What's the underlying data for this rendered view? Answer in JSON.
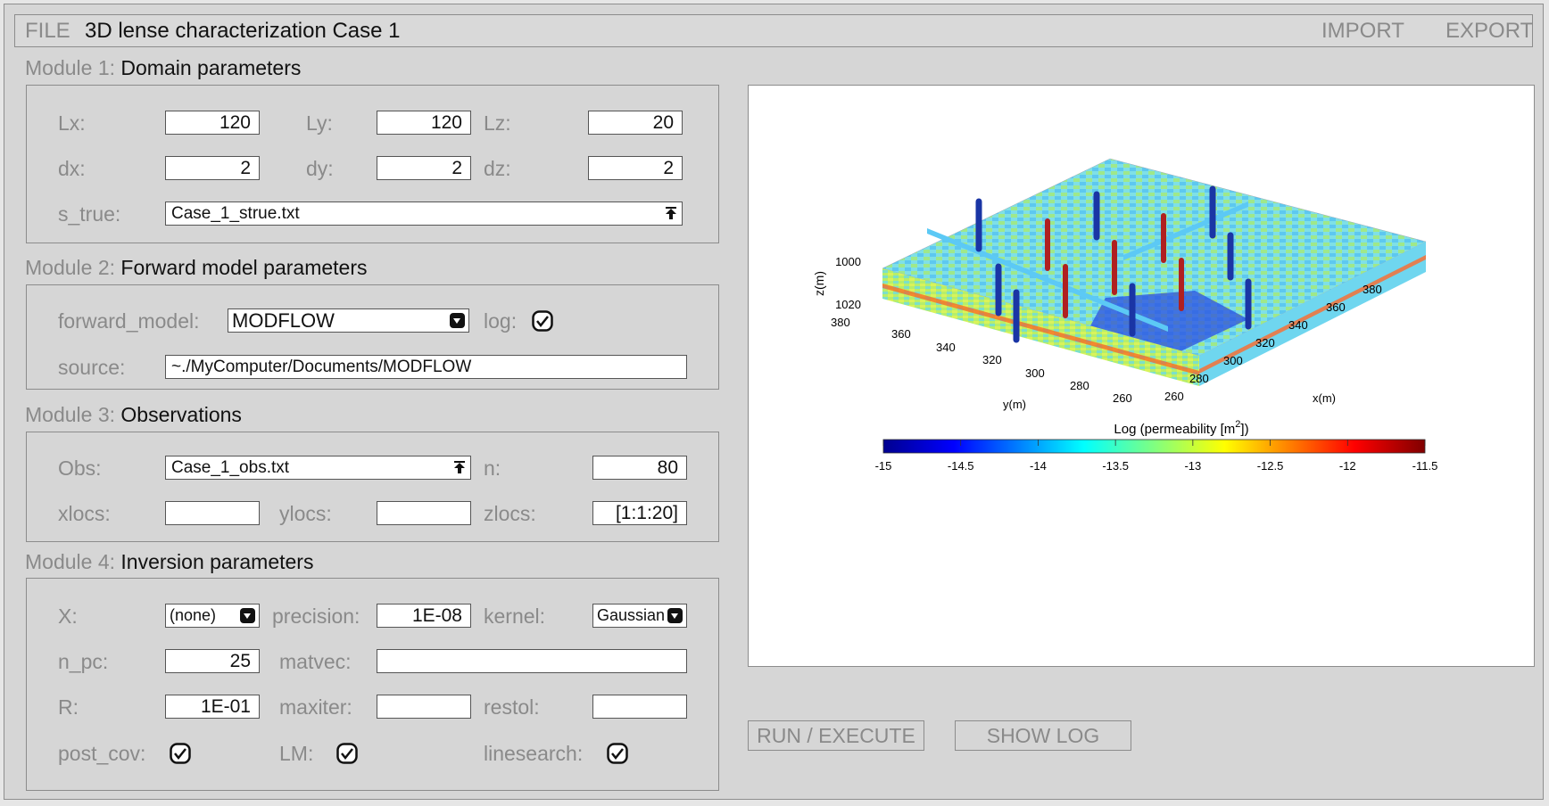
{
  "titlebar": {
    "file_label": "FILE",
    "title": "3D lense characterization Case 1",
    "import_label": "IMPORT",
    "export_label": "EXPORT"
  },
  "module1": {
    "prefix": "Module 1:",
    "name": "Domain parameters",
    "lx_label": "Lx:",
    "lx": "120",
    "ly_label": "Ly:",
    "ly": "120",
    "lz_label": "Lz:",
    "lz": "20",
    "dx_label": "dx:",
    "dx": "2",
    "dy_label": "dy:",
    "dy": "2",
    "dz_label": "dz:",
    "dz": "2",
    "strue_label": "s_true:",
    "strue": "Case_1_strue.txt"
  },
  "module2": {
    "prefix": "Module 2:",
    "name": "Forward model parameters",
    "fm_label": "forward_model:",
    "fm": "MODFLOW",
    "log_label": "log:",
    "source_label": "source:",
    "source": "~./MyComputer/Documents/MODFLOW"
  },
  "module3": {
    "prefix": "Module 3:",
    "name": "Observations",
    "obs_label": "Obs:",
    "obs": "Case_1_obs.txt",
    "n_label": "n:",
    "n": "80",
    "xlocs_label": "xlocs:",
    "xlocs": "",
    "ylocs_label": "ylocs:",
    "ylocs": "",
    "zlocs_label": "zlocs:",
    "zlocs": "[1:1:20]"
  },
  "module4": {
    "prefix": "Module 4:",
    "name": "Inversion parameters",
    "x_label": "X:",
    "x": "(none)",
    "precision_label": "precision:",
    "precision": "1E-08",
    "kernel_label": "kernel:",
    "kernel": "Gaussian",
    "npc_label": "n_pc:",
    "npc": "25",
    "matvec_label": "matvec:",
    "matvec": "",
    "r_label": "R:",
    "r": "1E-01",
    "maxiter_label": "maxiter:",
    "maxiter": "",
    "restol_label": "restol:",
    "restol": "",
    "postcov_label": "post_cov:",
    "lm_label": "LM:",
    "linesearch_label": "linesearch:"
  },
  "plot": {
    "zlabel": "z(m)",
    "ylabel": "y(m)",
    "xlabel": "x(m)",
    "z_ticks": [
      "1000",
      "1020"
    ],
    "y_ticks": [
      "380",
      "360",
      "340",
      "320",
      "300",
      "280",
      "260"
    ],
    "x_ticks": [
      "260",
      "280",
      "300",
      "320",
      "340",
      "360",
      "380"
    ],
    "colorbar_title": "Log (permeability [m",
    "colorbar_title_sup": "2",
    "colorbar_title_end": "])",
    "colorbar_ticks": [
      "-15",
      "-14.5",
      "-14",
      "-13.5",
      "-13",
      "-12.5",
      "-12",
      "-11.5"
    ]
  },
  "buttons": {
    "run": "RUN / EXECUTE",
    "log": "SHOW LOG"
  }
}
